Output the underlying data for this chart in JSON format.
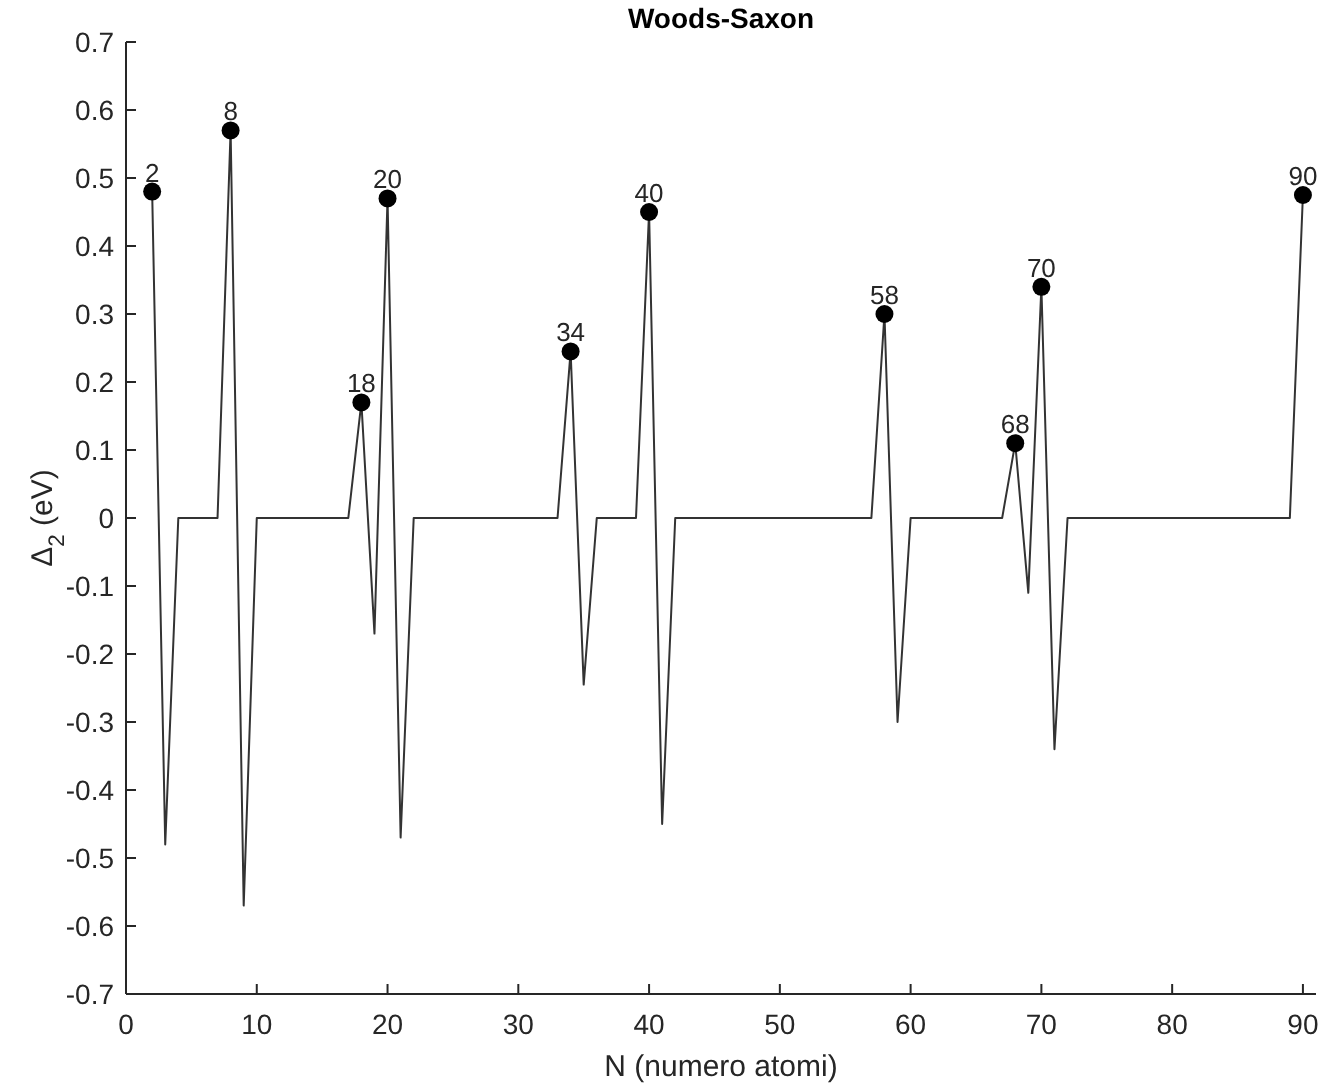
{
  "chart_data": {
    "type": "line",
    "title": "Woods-Saxon",
    "xlabel": "N (numero atomi)",
    "ylabel": "Δ$_{2}$ (eV)",
    "xlim": [
      0,
      91
    ],
    "xticks": [
      0,
      10,
      20,
      30,
      40,
      50,
      60,
      70,
      80,
      90
    ],
    "ylim": [
      -0.7,
      0.7
    ],
    "yticks": [
      -0.7,
      -0.6,
      -0.5,
      -0.4,
      -0.3,
      -0.2,
      -0.1,
      0,
      0.1,
      0.2,
      0.3,
      0.4,
      0.5,
      0.6,
      0.7
    ],
    "grid": false,
    "series": [
      {
        "color": "#333333",
        "marker": "none",
        "x": [
          2,
          3,
          4,
          7,
          8,
          9,
          10,
          17,
          18,
          19,
          20,
          21,
          22,
          33,
          34,
          35,
          36,
          39,
          40,
          41,
          42,
          57,
          58,
          59,
          60,
          67,
          68,
          69,
          70,
          71,
          72,
          89,
          90
        ],
        "values": [
          0.48,
          -0.48,
          0,
          0,
          0.57,
          -0.57,
          0,
          0,
          0.17,
          -0.17,
          0.47,
          -0.47,
          0,
          0,
          0.245,
          -0.245,
          0,
          0,
          0.45,
          -0.45,
          0,
          0,
          0.3,
          -0.3,
          0,
          0,
          0.11,
          -0.11,
          0.34,
          -0.34,
          0,
          0,
          0.475
        ]
      },
      {
        "type": "scatter",
        "color": "#000000",
        "marker": "circle",
        "x": [
          2,
          8,
          18,
          20,
          34,
          40,
          58,
          68,
          70,
          90
        ],
        "values": [
          0.48,
          0.57,
          0.17,
          0.47,
          0.245,
          0.45,
          0.3,
          0.11,
          0.34,
          0.475
        ]
      }
    ],
    "annotations": [
      {
        "text": "2",
        "x": 2,
        "y": 0.48
      },
      {
        "text": "8",
        "x": 8,
        "y": 0.57
      },
      {
        "text": "18",
        "x": 18,
        "y": 0.17
      },
      {
        "text": "20",
        "x": 20,
        "y": 0.47
      },
      {
        "text": "34",
        "x": 34,
        "y": 0.245
      },
      {
        "text": "40",
        "x": 40,
        "y": 0.45
      },
      {
        "text": "58",
        "x": 58,
        "y": 0.3
      },
      {
        "text": "68",
        "x": 68,
        "y": 0.11
      },
      {
        "text": "70",
        "x": 70,
        "y": 0.34
      },
      {
        "text": "90",
        "x": 90,
        "y": 0.475
      }
    ]
  }
}
